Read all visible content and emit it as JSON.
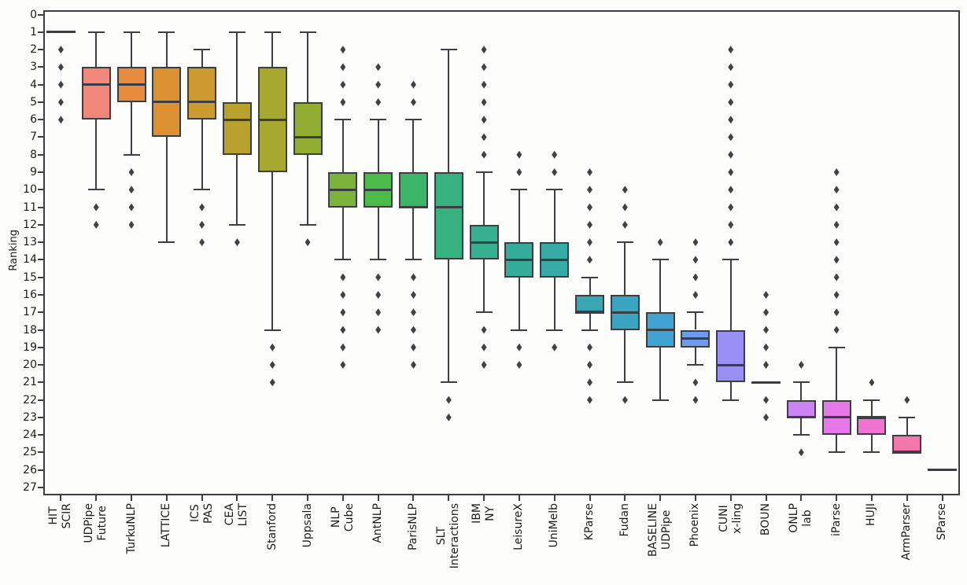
{
  "figure": {
    "background": "#fcfcfa",
    "edge_color": "#3b3f44",
    "flier_color": "#3f4347",
    "tick_color": "#1c1c1c"
  },
  "chart_data": {
    "type": "boxplot",
    "orientation": "vertical_inverted",
    "title": "",
    "xlabel": "",
    "ylabel": "Ranking",
    "grid": false,
    "legend": "none",
    "ylim": [
      27.45,
      -0.25
    ],
    "yticks": [
      0,
      1,
      2,
      3,
      4,
      5,
      6,
      7,
      8,
      9,
      10,
      11,
      12,
      13,
      14,
      15,
      16,
      17,
      18,
      19,
      20,
      21,
      22,
      23,
      24,
      25,
      26,
      27
    ],
    "categories": [
      "HIT SCIR",
      "UDPipe Future",
      "TurkuNLP",
      "LATTICE",
      "ICS PAS",
      "CEA LIST",
      "Stanford",
      "Uppsala",
      "NLP Cube",
      "AntNLP",
      "ParisNLP",
      "SLT Interactions",
      "IBM NY",
      "LeisureX",
      "UniMelb",
      "KParse",
      "Fudan",
      "BASELINE UDPipe",
      "Phoenix",
      "CUNI x-ling",
      "BOUN",
      "ONLP lab",
      "iParse",
      "HUJI",
      "ArmParser",
      "SParse"
    ],
    "teams": [
      {
        "label_lines": [
          "HIT",
          "SCIR"
        ],
        "color": "#f77189",
        "flat": true,
        "stats": {
          "whisker_top": 1,
          "q1": 1,
          "median": 1,
          "q3": 1,
          "whisker_bottom": 1
        },
        "outliers": [
          2,
          3,
          4,
          5,
          6
        ]
      },
      {
        "label_lines": [
          "UDPipe",
          "Future"
        ],
        "color": "#f1867b",
        "flat": false,
        "stats": {
          "whisker_top": 1,
          "q1": 3,
          "median": 4,
          "q3": 6,
          "whisker_bottom": 10
        },
        "outliers": [
          11,
          12
        ]
      },
      {
        "label_lines": [
          "TurkuNLP"
        ],
        "color": "#e98b3c",
        "flat": false,
        "stats": {
          "whisker_top": 1,
          "q1": 3,
          "median": 4,
          "q3": 5,
          "whisker_bottom": 8
        },
        "outliers": [
          9,
          10,
          11,
          12
        ]
      },
      {
        "label_lines": [
          "LATTICE"
        ],
        "color": "#dc9233",
        "flat": false,
        "stats": {
          "whisker_top": 1,
          "q1": 3,
          "median": 5,
          "q3": 7,
          "whisker_bottom": 13
        },
        "outliers": []
      },
      {
        "label_lines": [
          "ICS",
          "PAS"
        ],
        "color": "#cc9a2e",
        "flat": false,
        "stats": {
          "whisker_top": 2,
          "q1": 3,
          "median": 5,
          "q3": 6,
          "whisker_bottom": 10
        },
        "outliers": [
          11,
          12,
          13
        ]
      },
      {
        "label_lines": [
          "CEA",
          "LIST"
        ],
        "color": "#b9a12d",
        "flat": false,
        "stats": {
          "whisker_top": 1,
          "q1": 5,
          "median": 6,
          "q3": 8,
          "whisker_bottom": 12
        },
        "outliers": [
          13
        ]
      },
      {
        "label_lines": [
          "Stanford"
        ],
        "color": "#a6a82f",
        "flat": false,
        "stats": {
          "whisker_top": 1,
          "q1": 3,
          "median": 6,
          "q3": 9,
          "whisker_bottom": 18
        },
        "outliers": [
          19,
          20,
          21
        ]
      },
      {
        "label_lines": [
          "Uppsala"
        ],
        "color": "#93ad33",
        "flat": false,
        "stats": {
          "whisker_top": 1,
          "q1": 5,
          "median": 7,
          "q3": 8,
          "whisker_bottom": 12
        },
        "outliers": [
          13
        ]
      },
      {
        "label_lines": [
          "NLP",
          "Cube"
        ],
        "color": "#7cb33b",
        "flat": false,
        "stats": {
          "whisker_top": 6,
          "q1": 9,
          "median": 10,
          "q3": 11,
          "whisker_bottom": 14
        },
        "outliers": [
          2,
          3,
          4,
          5,
          15,
          16,
          17,
          18,
          19,
          20
        ]
      },
      {
        "label_lines": [
          "AntNLP"
        ],
        "color": "#4bbb4a",
        "flat": false,
        "stats": {
          "whisker_top": 6,
          "q1": 9,
          "median": 10,
          "q3": 11,
          "whisker_bottom": 14
        },
        "outliers": [
          3,
          4,
          5,
          15,
          16,
          17,
          18
        ]
      },
      {
        "label_lines": [
          "ParisNLP"
        ],
        "color": "#3cb769",
        "flat": false,
        "stats": {
          "whisker_top": 6,
          "q1": 9,
          "median": 11,
          "q3": 11,
          "whisker_bottom": 14
        },
        "outliers": [
          4,
          5,
          15,
          16,
          17,
          18,
          19,
          20
        ]
      },
      {
        "label_lines": [
          "SLT",
          "Interactions"
        ],
        "color": "#37b27e",
        "flat": false,
        "stats": {
          "whisker_top": 2,
          "q1": 9,
          "median": 11,
          "q3": 14,
          "whisker_bottom": 21
        },
        "outliers": [
          22,
          23
        ]
      },
      {
        "label_lines": [
          "IBM",
          "NY"
        ],
        "color": "#35af8d",
        "flat": false,
        "stats": {
          "whisker_top": 9,
          "q1": 12,
          "median": 13,
          "q3": 14,
          "whisker_bottom": 17
        },
        "outliers": [
          2,
          3,
          4,
          5,
          6,
          7,
          8,
          18,
          19,
          20
        ]
      },
      {
        "label_lines": [
          "LeisureX"
        ],
        "color": "#35ac9a",
        "flat": false,
        "stats": {
          "whisker_top": 10,
          "q1": 13,
          "median": 14,
          "q3": 15,
          "whisker_bottom": 18
        },
        "outliers": [
          8,
          9,
          19,
          20
        ]
      },
      {
        "label_lines": [
          "UniMelb"
        ],
        "color": "#36aaa6",
        "flat": false,
        "stats": {
          "whisker_top": 10,
          "q1": 13,
          "median": 14,
          "q3": 15,
          "whisker_bottom": 18
        },
        "outliers": [
          8,
          9,
          19
        ]
      },
      {
        "label_lines": [
          "KParse"
        ],
        "color": "#38a7b2",
        "flat": false,
        "stats": {
          "whisker_top": 15,
          "q1": 16,
          "median": 17,
          "q3": 17,
          "whisker_bottom": 18
        },
        "outliers": [
          9,
          10,
          11,
          12,
          13,
          14,
          19,
          20,
          21,
          22
        ]
      },
      {
        "label_lines": [
          "Fudan"
        ],
        "color": "#3aa5c0",
        "flat": false,
        "stats": {
          "whisker_top": 13,
          "q1": 16,
          "median": 17,
          "q3": 18,
          "whisker_bottom": 21
        },
        "outliers": [
          10,
          11,
          12,
          22
        ]
      },
      {
        "label_lines": [
          "BASELINE",
          "UDPipe"
        ],
        "color": "#40a1d3",
        "flat": false,
        "stats": {
          "whisker_top": 14,
          "q1": 17,
          "median": 18,
          "q3": 19,
          "whisker_bottom": 22
        },
        "outliers": [
          13
        ]
      },
      {
        "label_lines": [
          "Phoenix"
        ],
        "color": "#6c9cec",
        "flat": false,
        "stats": {
          "whisker_top": 17,
          "q1": 18,
          "median": 18.5,
          "q3": 19,
          "whisker_bottom": 20
        },
        "outliers": [
          13,
          14,
          15,
          16,
          21,
          22
        ]
      },
      {
        "label_lines": [
          "CUNI",
          "x-ling"
        ],
        "color": "#998ff4",
        "flat": false,
        "stats": {
          "whisker_top": 14,
          "q1": 18,
          "median": 20,
          "q3": 21,
          "whisker_bottom": 22
        },
        "outliers": [
          2,
          3,
          4,
          5,
          6,
          7,
          8,
          9,
          10,
          11,
          12,
          13
        ]
      },
      {
        "label_lines": [
          "BOUN"
        ],
        "color": "#b588f4",
        "flat": true,
        "stats": {
          "whisker_top": 21,
          "q1": 21,
          "median": 21,
          "q3": 21,
          "whisker_bottom": 21
        },
        "outliers": [
          16,
          17,
          18,
          19,
          20,
          22,
          23
        ]
      },
      {
        "label_lines": [
          "ONLP",
          "lab"
        ],
        "color": "#cc83f2",
        "flat": false,
        "stats": {
          "whisker_top": 21,
          "q1": 22,
          "median": 23,
          "q3": 23,
          "whisker_bottom": 24
        },
        "outliers": [
          20,
          25
        ]
      },
      {
        "label_lines": [
          "iParse"
        ],
        "color": "#e778e9",
        "flat": false,
        "stats": {
          "whisker_top": 19,
          "q1": 22,
          "median": 23,
          "q3": 24,
          "whisker_bottom": 25
        },
        "outliers": [
          9,
          10,
          11,
          12,
          13,
          14,
          15,
          16,
          17,
          18
        ]
      },
      {
        "label_lines": [
          "HUJI"
        ],
        "color": "#f272d1",
        "flat": false,
        "stats": {
          "whisker_top": 22,
          "q1": 23,
          "median": 23,
          "q3": 24,
          "whisker_bottom": 25
        },
        "outliers": [
          21
        ]
      },
      {
        "label_lines": [
          "ArmParser"
        ],
        "color": "#f577ac",
        "flat": false,
        "stats": {
          "whisker_top": 23,
          "q1": 24,
          "median": 25,
          "q3": 25,
          "whisker_bottom": 25
        },
        "outliers": [
          22
        ]
      },
      {
        "label_lines": [
          "SParse"
        ],
        "color": "#f87f9f",
        "flat": true,
        "stats": {
          "whisker_top": 26,
          "q1": 26,
          "median": 26,
          "q3": 26,
          "whisker_bottom": 26
        },
        "outliers": []
      }
    ]
  }
}
